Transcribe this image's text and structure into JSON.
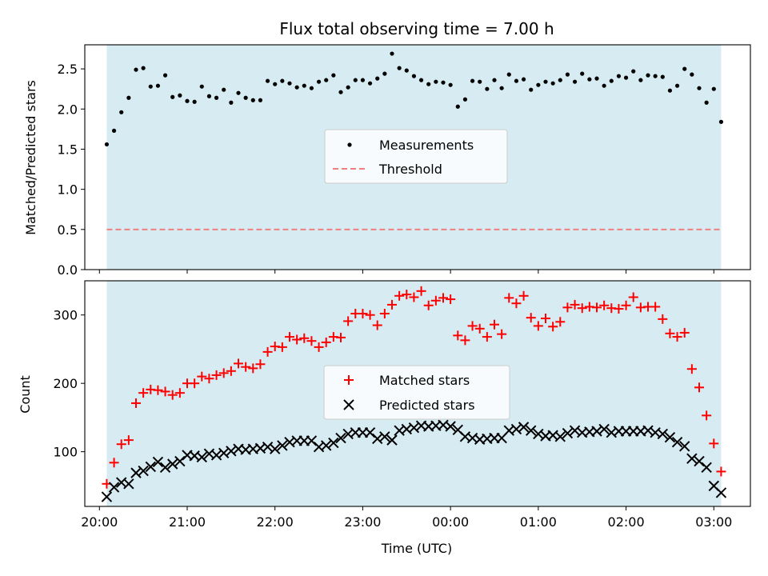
{
  "title": "Flux total observing time = 7.00 h",
  "colors": {
    "shade": "#add8e6",
    "measurement": "#000000",
    "threshold": "#f08080",
    "matched": "#ff0000",
    "predicted": "#000000"
  },
  "chart_data": [
    {
      "type": "scatter",
      "ylabel": "Matched/Predicted stars",
      "xlabel": "",
      "ylim": [
        0,
        2.8
      ],
      "xlim": [
        "19:50",
        "03:25"
      ],
      "yticks": [
        "0.0",
        "0.5",
        "1.0",
        "1.5",
        "2.0",
        "2.5"
      ],
      "legend_position": "center",
      "shaded_span": [
        "20:05",
        "03:05"
      ],
      "threshold": {
        "name": "Threshold",
        "value": 0.5,
        "style": "dashed"
      },
      "series": [
        {
          "name": "Measurements",
          "marker": "dot",
          "x": [
            "20:05",
            "20:10",
            "20:15",
            "20:20",
            "20:25",
            "20:30",
            "20:35",
            "20:40",
            "20:45",
            "20:50",
            "20:55",
            "21:00",
            "21:05",
            "21:10",
            "21:15",
            "21:20",
            "21:25",
            "21:30",
            "21:35",
            "21:40",
            "21:45",
            "21:50",
            "21:55",
            "22:00",
            "22:05",
            "22:10",
            "22:15",
            "22:20",
            "22:25",
            "22:30",
            "22:35",
            "22:40",
            "22:45",
            "22:50",
            "22:55",
            "23:00",
            "23:05",
            "23:10",
            "23:15",
            "23:20",
            "23:25",
            "23:30",
            "23:35",
            "23:40",
            "23:45",
            "23:50",
            "23:55",
            "00:00",
            "00:05",
            "00:10",
            "00:15",
            "00:20",
            "00:25",
            "00:30",
            "00:35",
            "00:40",
            "00:45",
            "00:50",
            "00:55",
            "01:00",
            "01:05",
            "01:10",
            "01:15",
            "01:20",
            "01:25",
            "01:30",
            "01:35",
            "01:40",
            "01:45",
            "01:50",
            "01:55",
            "02:00",
            "02:05",
            "02:10",
            "02:15",
            "02:20",
            "02:25",
            "02:30",
            "02:35",
            "02:40",
            "02:45",
            "02:50",
            "02:55",
            "03:00",
            "03:05"
          ],
          "values": [
            1.56,
            1.73,
            1.96,
            2.14,
            2.49,
            2.51,
            2.28,
            2.29,
            2.42,
            2.15,
            2.17,
            2.1,
            2.09,
            2.28,
            2.16,
            2.14,
            2.24,
            2.08,
            2.2,
            2.14,
            2.11,
            2.11,
            2.35,
            2.31,
            2.35,
            2.32,
            2.27,
            2.29,
            2.26,
            2.34,
            2.36,
            2.42,
            2.21,
            2.27,
            2.36,
            2.36,
            2.32,
            2.38,
            2.44,
            2.69,
            2.51,
            2.48,
            2.41,
            2.36,
            2.31,
            2.34,
            2.33,
            2.3,
            2.03,
            2.12,
            2.35,
            2.34,
            2.25,
            2.36,
            2.26,
            2.43,
            2.35,
            2.37,
            2.24,
            2.3,
            2.34,
            2.32,
            2.36,
            2.43,
            2.34,
            2.44,
            2.37,
            2.38,
            2.29,
            2.35,
            2.41,
            2.39,
            2.47,
            2.36,
            2.42,
            2.41,
            2.4,
            2.23,
            2.29,
            2.5,
            2.43,
            2.26,
            2.08,
            2.25,
            1.84
          ]
        }
      ]
    },
    {
      "type": "scatter",
      "ylabel": "Count",
      "xlabel": "Time (UTC)",
      "ylim": [
        20,
        350
      ],
      "xlim": [
        "19:50",
        "03:25"
      ],
      "yticks": [
        "100",
        "200",
        "300"
      ],
      "xticks": [
        "20:00",
        "21:00",
        "22:00",
        "23:00",
        "00:00",
        "01:00",
        "02:00",
        "03:00"
      ],
      "legend_position": "center",
      "shaded_span": [
        "20:05",
        "03:05"
      ],
      "series": [
        {
          "name": "Matched stars",
          "marker": "plus",
          "x": [
            "20:05",
            "20:10",
            "20:15",
            "20:20",
            "20:25",
            "20:30",
            "20:35",
            "20:40",
            "20:45",
            "20:50",
            "20:55",
            "21:00",
            "21:05",
            "21:10",
            "21:15",
            "21:20",
            "21:25",
            "21:30",
            "21:35",
            "21:40",
            "21:45",
            "21:50",
            "21:55",
            "22:00",
            "22:05",
            "22:10",
            "22:15",
            "22:20",
            "22:25",
            "22:30",
            "22:35",
            "22:40",
            "22:45",
            "22:50",
            "22:55",
            "23:00",
            "23:05",
            "23:10",
            "23:15",
            "23:20",
            "23:25",
            "23:30",
            "23:35",
            "23:40",
            "23:45",
            "23:50",
            "23:55",
            "00:00",
            "00:05",
            "00:10",
            "00:15",
            "00:20",
            "00:25",
            "00:30",
            "00:35",
            "00:40",
            "00:45",
            "00:50",
            "00:55",
            "01:00",
            "01:05",
            "01:10",
            "01:15",
            "01:20",
            "01:25",
            "01:30",
            "01:35",
            "01:40",
            "01:45",
            "01:50",
            "01:55",
            "02:00",
            "02:05",
            "02:10",
            "02:15",
            "02:20",
            "02:25",
            "02:30",
            "02:35",
            "02:40",
            "02:45",
            "02:50",
            "02:55",
            "03:00",
            "03:05"
          ],
          "values": [
            53,
            84,
            111,
            117,
            171,
            186,
            191,
            190,
            188,
            183,
            186,
            200,
            200,
            210,
            207,
            212,
            215,
            218,
            229,
            224,
            222,
            228,
            246,
            254,
            253,
            268,
            264,
            266,
            262,
            253,
            260,
            268,
            267,
            291,
            302,
            302,
            300,
            285,
            302,
            315,
            328,
            330,
            326,
            335,
            314,
            321,
            325,
            323,
            270,
            263,
            284,
            280,
            268,
            286,
            272,
            325,
            317,
            328,
            296,
            284,
            295,
            283,
            290,
            311,
            315,
            310,
            312,
            311,
            314,
            310,
            309,
            314,
            326,
            311,
            312,
            312,
            294,
            273,
            268,
            274,
            221,
            194,
            153,
            112,
            71
          ]
        },
        {
          "name": "Predicted stars",
          "marker": "x",
          "x": [
            "20:05",
            "20:10",
            "20:15",
            "20:20",
            "20:25",
            "20:30",
            "20:35",
            "20:40",
            "20:45",
            "20:50",
            "20:55",
            "21:00",
            "21:05",
            "21:10",
            "21:15",
            "21:20",
            "21:25",
            "21:30",
            "21:35",
            "21:40",
            "21:45",
            "21:50",
            "21:55",
            "22:00",
            "22:05",
            "22:10",
            "22:15",
            "22:20",
            "22:25",
            "22:30",
            "22:35",
            "22:40",
            "22:45",
            "22:50",
            "22:55",
            "23:00",
            "23:05",
            "23:10",
            "23:15",
            "23:20",
            "23:25",
            "23:30",
            "23:35",
            "23:40",
            "23:45",
            "23:50",
            "23:55",
            "00:00",
            "00:05",
            "00:10",
            "00:15",
            "00:20",
            "00:25",
            "00:30",
            "00:35",
            "00:40",
            "00:45",
            "00:50",
            "00:55",
            "01:00",
            "01:05",
            "01:10",
            "01:15",
            "01:20",
            "01:25",
            "01:30",
            "01:35",
            "01:40",
            "01:45",
            "01:50",
            "01:55",
            "02:00",
            "02:05",
            "02:10",
            "02:15",
            "02:20",
            "02:25",
            "02:30",
            "02:35",
            "02:40",
            "02:45",
            "02:50",
            "02:55",
            "03:00",
            "03:05"
          ],
          "values": [
            34,
            48,
            55,
            53,
            69,
            72,
            78,
            85,
            77,
            82,
            86,
            95,
            94,
            92,
            97,
            95,
            98,
            101,
            104,
            103,
            104,
            105,
            107,
            104,
            109,
            114,
            116,
            116,
            116,
            107,
            109,
            113,
            120,
            126,
            128,
            128,
            128,
            119,
            122,
            117,
            131,
            133,
            135,
            138,
            137,
            138,
            139,
            137,
            132,
            122,
            120,
            118,
            119,
            120,
            120,
            131,
            133,
            136,
            131,
            126,
            123,
            124,
            122,
            127,
            131,
            128,
            129,
            130,
            133,
            128,
            130,
            130,
            130,
            130,
            131,
            128,
            126,
            121,
            114,
            108,
            90,
            86,
            77,
            50,
            40
          ]
        }
      ]
    }
  ]
}
